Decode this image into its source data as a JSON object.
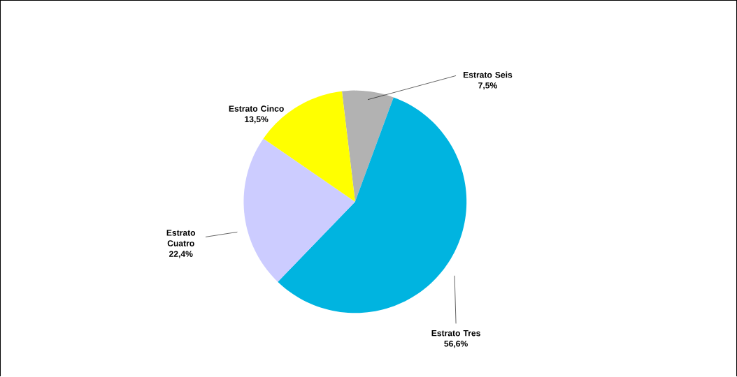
{
  "chart_data": {
    "type": "pie",
    "categories": [
      "Estrato Seis",
      "Estrato Tres",
      "Estrato Cuatro",
      "Estrato Cinco"
    ],
    "values": [
      7.5,
      56.6,
      22.4,
      13.5
    ],
    "colors": [
      "#b2b2b2",
      "#00b4e0",
      "#ccccff",
      "#ffff00"
    ],
    "value_labels": [
      "7,5%",
      "56,6%",
      "22,4%",
      "13,5%"
    ]
  }
}
